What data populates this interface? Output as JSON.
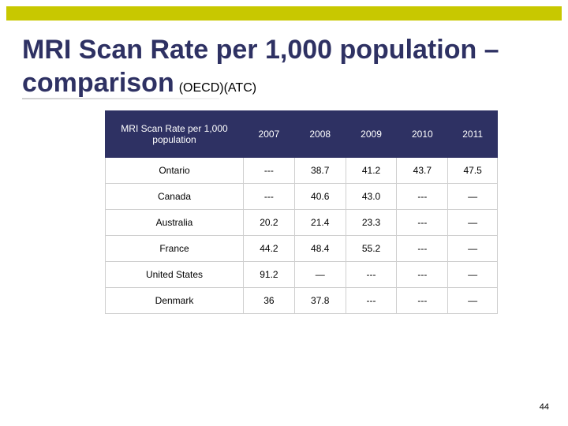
{
  "slide": {
    "title_main": "MRI Scan Rate per 1,000 population –comparison",
    "title_sub": "(OECD)(ATC)",
    "page_number": "44"
  },
  "table": {
    "header": [
      "MRI Scan Rate per 1,000 population",
      "2007",
      "2008",
      "2009",
      "2010",
      "2011"
    ],
    "rows": [
      [
        "Ontario",
        "---",
        "38.7",
        "41.2",
        "43.7",
        "47.5"
      ],
      [
        "Canada",
        "---",
        "40.6",
        "43.0",
        "---",
        "—"
      ],
      [
        "Australia",
        "20.2",
        "21.4",
        "23.3",
        "---",
        "—"
      ],
      [
        "France",
        "44.2",
        "48.4",
        "55.2",
        "---",
        "—"
      ],
      [
        "United States",
        "91.2",
        "—",
        "---",
        "---",
        "—"
      ],
      [
        "Denmark",
        "36",
        "37.8",
        "---",
        "---",
        "—"
      ]
    ]
  },
  "colors": {
    "accent_bar": "#c8c800",
    "title": "#2e3163",
    "header_bg": "#2e3163"
  }
}
